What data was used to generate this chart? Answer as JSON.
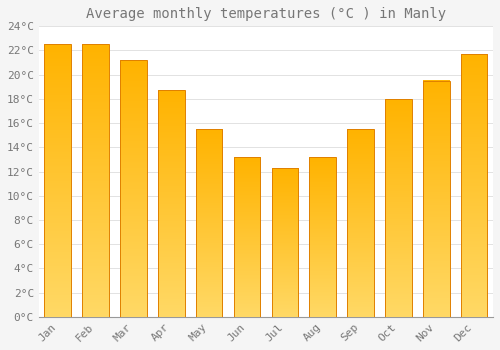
{
  "title": "Average monthly temperatures (°C ) in Manly",
  "months": [
    "Jan",
    "Feb",
    "Mar",
    "Apr",
    "May",
    "Jun",
    "Jul",
    "Aug",
    "Sep",
    "Oct",
    "Nov",
    "Dec"
  ],
  "values": [
    22.5,
    22.5,
    21.2,
    18.7,
    15.5,
    13.2,
    12.3,
    13.2,
    15.5,
    18.0,
    19.5,
    21.7
  ],
  "bar_color": "#FFA500",
  "bar_gradient_top": "#FFB300",
  "bar_gradient_bottom": "#FFD966",
  "bar_edge_color": "#E08000",
  "background_color": "#F5F5F5",
  "plot_bg_color": "#FFFFFF",
  "grid_color": "#DDDDDD",
  "text_color": "#777777",
  "ylim": [
    0,
    24
  ],
  "ytick_step": 2,
  "title_fontsize": 10,
  "tick_fontsize": 8,
  "font_family": "monospace"
}
